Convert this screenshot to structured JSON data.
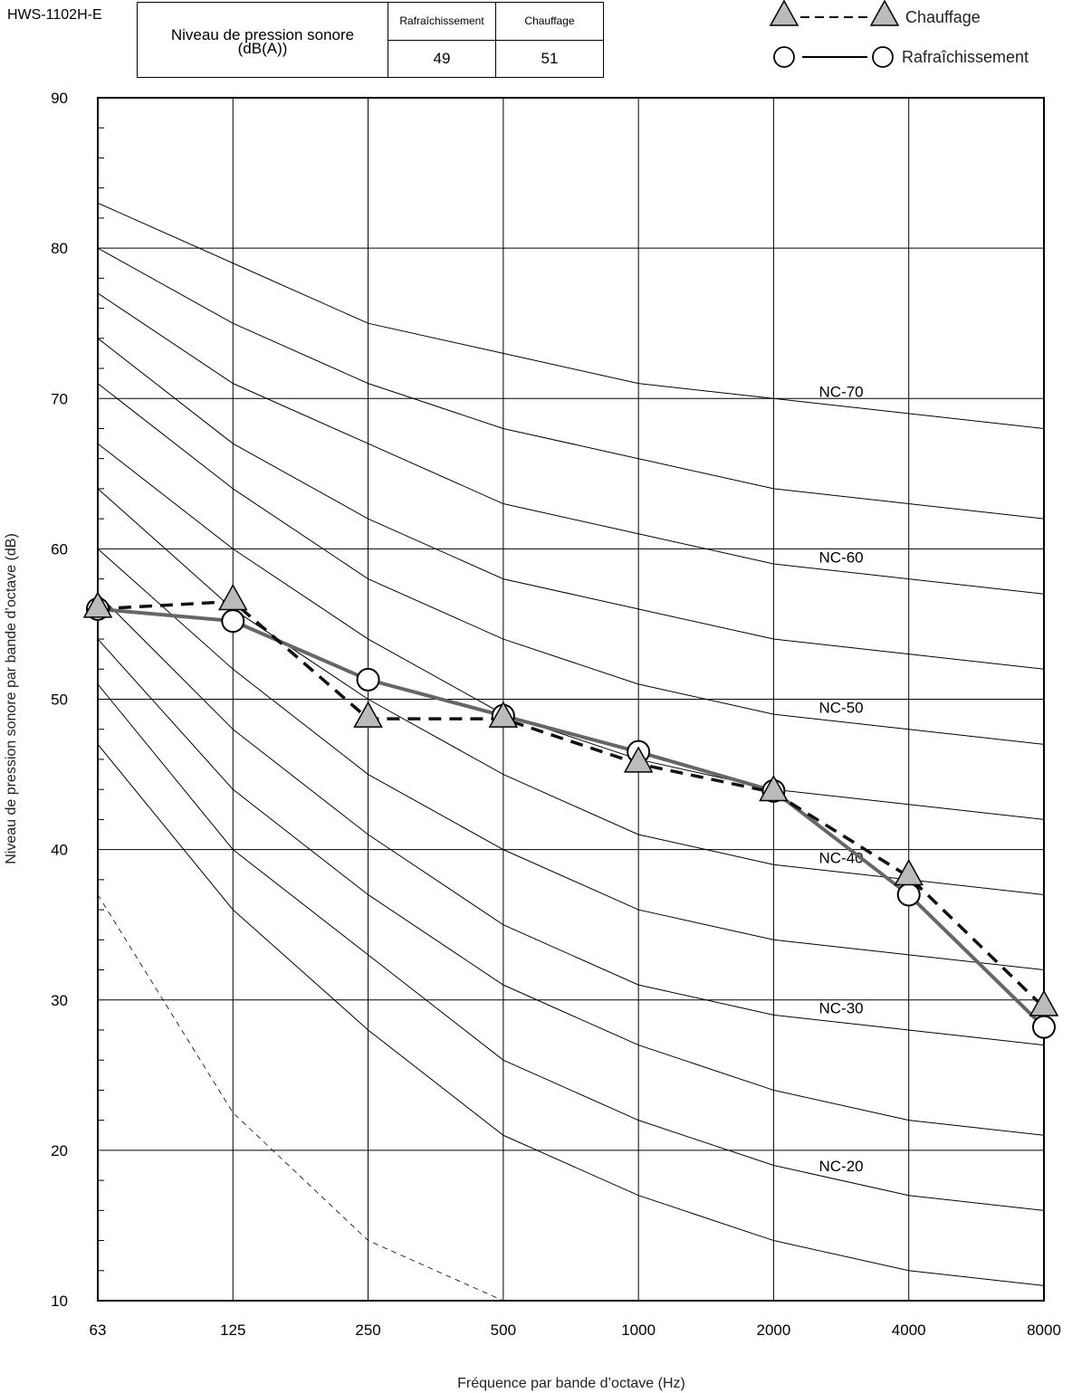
{
  "header": {
    "model": "HWS-1102H-E",
    "table": {
      "title_line1": "Niveau de pression sonore",
      "title_line2": "(dB(A))",
      "col_cooling": "Rafraîchissement",
      "col_heating": "Chauffage",
      "val_cooling": "49",
      "val_heating": "51"
    }
  },
  "colors": {
    "cooling_line": "#666666",
    "heating_line": "#111111",
    "marker_fill_triangle": "#bbbbbb",
    "marker_fill_circle": "#ffffff"
  },
  "chart_data": {
    "type": "line",
    "xlabel": "Fréquence par bande d’octave (Hz)",
    "ylabel": "Niveau de pression sonore par bande d’octave (dB)",
    "categories": [
      "63",
      "125",
      "250",
      "500",
      "1000",
      "2000",
      "4000",
      "8000"
    ],
    "ylim": [
      10,
      90
    ],
    "yticks": [
      10,
      20,
      30,
      40,
      50,
      60,
      70,
      80,
      90
    ],
    "grid": true,
    "legend_position": "top-right",
    "series": [
      {
        "name": "Chauffage",
        "style": "dashed",
        "marker": "triangle",
        "values": [
          56,
          56.5,
          48.7,
          48.7,
          45.7,
          43.8,
          38.2,
          29.5
        ]
      },
      {
        "name": "Rafraîchissement",
        "style": "solid",
        "marker": "circle",
        "values": [
          56,
          55.2,
          51.3,
          48.9,
          46.5,
          43.9,
          37,
          28.2
        ]
      }
    ],
    "nc_curves": [
      {
        "label": "",
        "values": [
          47,
          36,
          28,
          21,
          17,
          14,
          12,
          11
        ]
      },
      {
        "label": "NC-20",
        "values": [
          51,
          40,
          33,
          26,
          22,
          19,
          17,
          16
        ]
      },
      {
        "label": "",
        "values": [
          54,
          44,
          37,
          31,
          27,
          24,
          22,
          21
        ]
      },
      {
        "label": "NC-30",
        "values": [
          57,
          48,
          41,
          35,
          31,
          29,
          28,
          27
        ]
      },
      {
        "label": "",
        "values": [
          60,
          52,
          45,
          40,
          36,
          34,
          33,
          32
        ]
      },
      {
        "label": "NC-40",
        "values": [
          64,
          56,
          50,
          45,
          41,
          39,
          38,
          37
        ]
      },
      {
        "label": "",
        "values": [
          67,
          60,
          54,
          49,
          46,
          44,
          43,
          42
        ]
      },
      {
        "label": "NC-50",
        "values": [
          71,
          64,
          58,
          54,
          51,
          49,
          48,
          47
        ]
      },
      {
        "label": "",
        "values": [
          74,
          67,
          62,
          58,
          56,
          54,
          53,
          52
        ]
      },
      {
        "label": "NC-60",
        "values": [
          77,
          71,
          67,
          63,
          61,
          59,
          58,
          57
        ]
      },
      {
        "label": "",
        "values": [
          80,
          75,
          71,
          68,
          66,
          64,
          63,
          62
        ]
      },
      {
        "label": "NC-70",
        "values": [
          83,
          79,
          75,
          73,
          71,
          70,
          69,
          68
        ]
      }
    ],
    "threshold_curve": {
      "values": [
        37,
        22.5,
        14,
        10
      ]
    }
  }
}
